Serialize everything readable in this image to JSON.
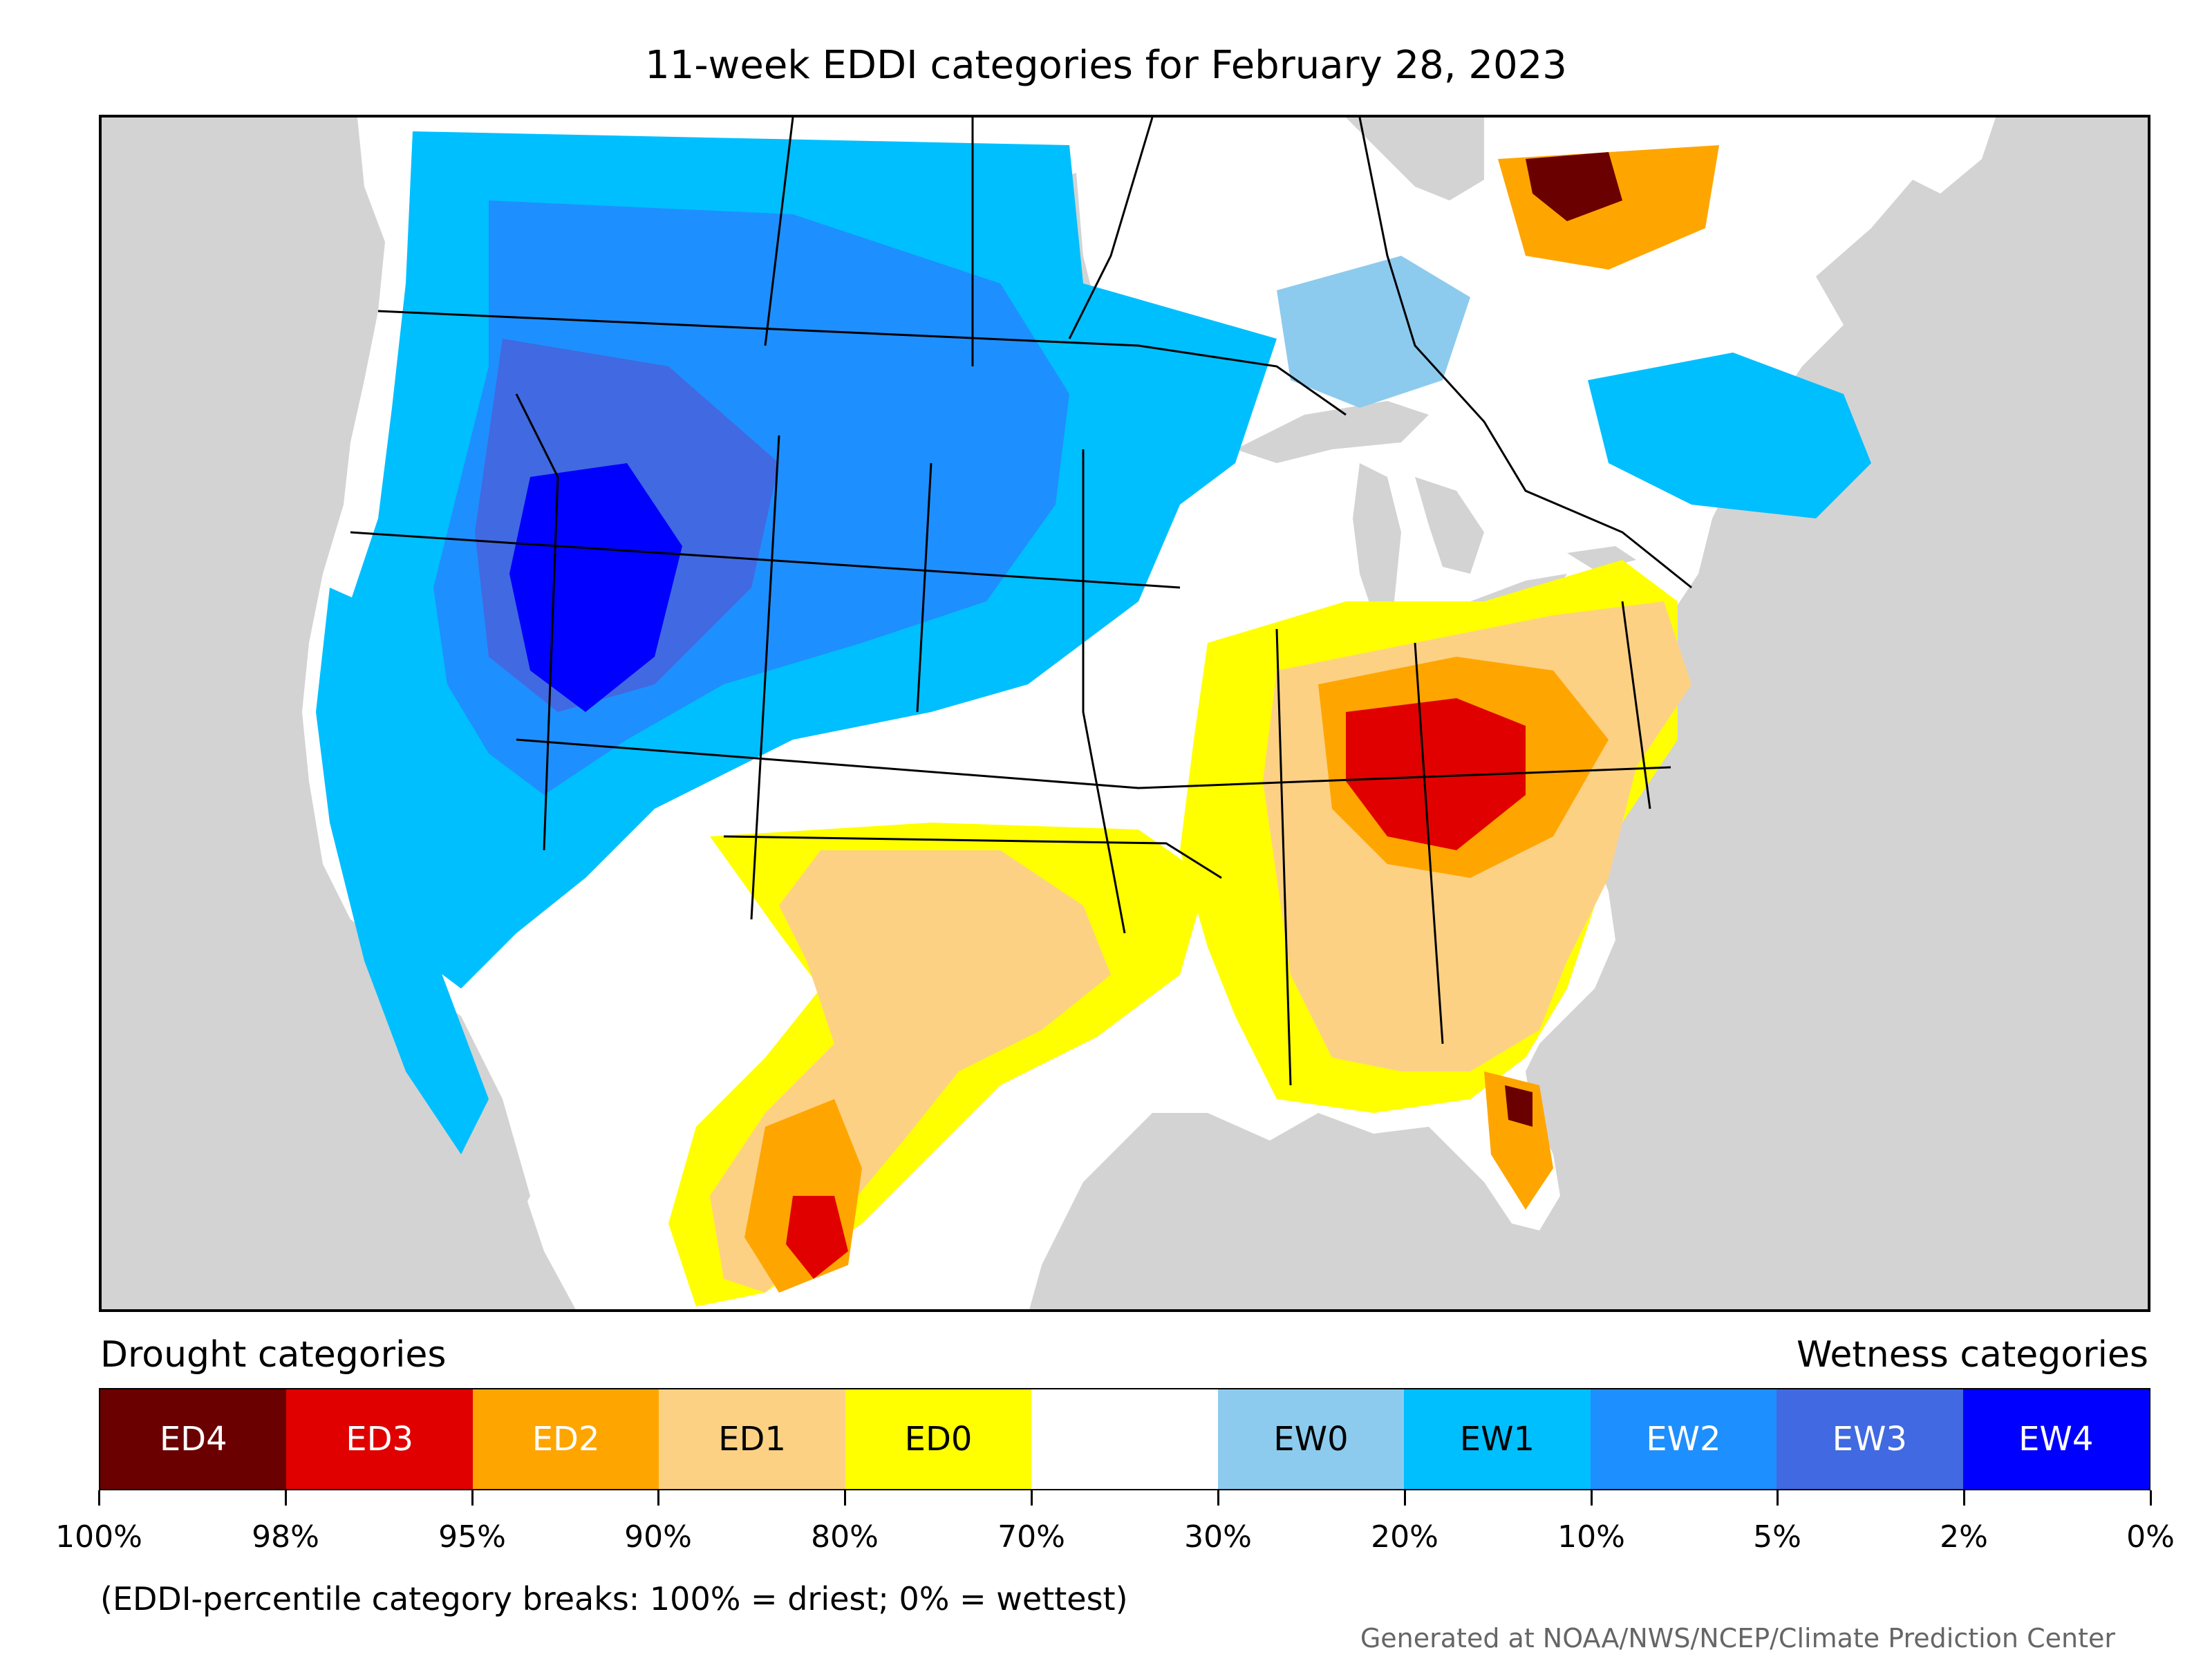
{
  "title": "11-week EDDI categories for February 28, 2023",
  "map": {
    "background_color": "#d3d3d3",
    "land_color": "#ffffff",
    "boundary_color": "#000000"
  },
  "legend": {
    "left_header": "Drought categories",
    "right_header": "Wetness categories",
    "categories": [
      {
        "label": "ED4",
        "color": "#6b0000",
        "text_color": "#ffffff"
      },
      {
        "label": "ED3",
        "color": "#e00000",
        "text_color": "#ffffff"
      },
      {
        "label": "ED2",
        "color": "#ffa500",
        "text_color": "#ffffff"
      },
      {
        "label": "ED1",
        "color": "#fdd184",
        "text_color": "#000000"
      },
      {
        "label": "ED0",
        "color": "#ffff00",
        "text_color": "#000000"
      },
      {
        "label": "",
        "color": "#ffffff",
        "text_color": "#000000"
      },
      {
        "label": "EW0",
        "color": "#8ccbee",
        "text_color": "#000000"
      },
      {
        "label": "EW1",
        "color": "#00bfff",
        "text_color": "#000000"
      },
      {
        "label": "EW2",
        "color": "#1e8fff",
        "text_color": "#ffffff"
      },
      {
        "label": "EW3",
        "color": "#4169e1",
        "text_color": "#ffffff"
      },
      {
        "label": "EW4",
        "color": "#0000ff",
        "text_color": "#ffffff"
      }
    ],
    "breaks": [
      "100%",
      "98%",
      "95%",
      "90%",
      "80%",
      "70%",
      "30%",
      "20%",
      "10%",
      "5%",
      "2%",
      "0%"
    ],
    "note": "(EDDI-percentile category breaks: 100% = driest; 0% = wettest)"
  },
  "credit": "Generated at NOAA/NWS/NCEP/Climate Prediction Center"
}
